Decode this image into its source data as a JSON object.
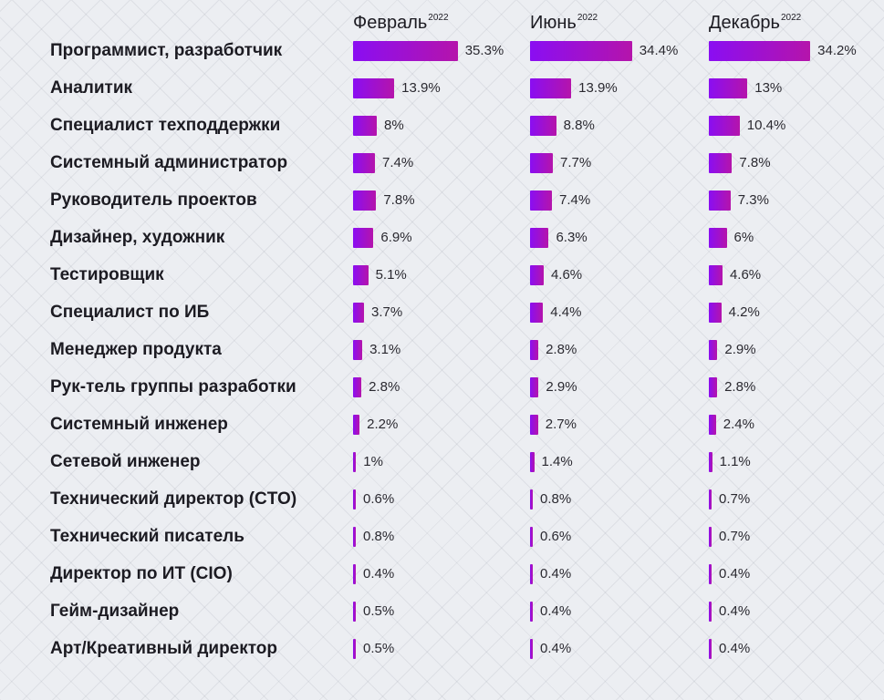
{
  "chart_data": {
    "type": "bar",
    "orientation": "horizontal",
    "columns": [
      {
        "name": "Февраль",
        "superscript": "2022"
      },
      {
        "name": "Июнь",
        "superscript": "2022"
      },
      {
        "name": "Декабрь",
        "superscript": "2022"
      }
    ],
    "categories": [
      "Программист, разработчик",
      "Аналитик",
      "Специалист техподдержки",
      "Системный администратор",
      "Руководитель проектов",
      "Дизайнер, художник",
      "Тестировщик",
      "Специалист по ИБ",
      "Менеджер продукта",
      "Рук-тель группы разработки",
      "Системный инженер",
      "Сетевой инженер",
      "Технический директор (CTO)",
      "Технический писатель",
      "Директор по ИТ (CIO)",
      "Гейм-дизайнер",
      "Арт/Креативный директор"
    ],
    "series": [
      {
        "name": "Февраль",
        "values": [
          35.3,
          13.9,
          8,
          7.4,
          7.8,
          6.9,
          5.1,
          3.7,
          3.1,
          2.8,
          2.2,
          1,
          0.6,
          0.8,
          0.4,
          0.5,
          0.5
        ],
        "labels": [
          "35.3%",
          "13.9%",
          "8%",
          "7.4%",
          "7.8%",
          "6.9%",
          "5.1%",
          "3.7%",
          "3.1%",
          "2.8%",
          "2.2%",
          "1%",
          "0.6%",
          "0.8%",
          "0.4%",
          "0.5%",
          "0.5%"
        ]
      },
      {
        "name": "Июнь",
        "values": [
          34.4,
          13.9,
          8.8,
          7.7,
          7.4,
          6.3,
          4.6,
          4.4,
          2.8,
          2.9,
          2.7,
          1.4,
          0.8,
          0.6,
          0.4,
          0.4,
          0.4
        ],
        "labels": [
          "34.4%",
          "13.9%",
          "8.8%",
          "7.7%",
          "7.4%",
          "6.3%",
          "4.6%",
          "4.4%",
          "2.8%",
          "2.9%",
          "2.7%",
          "1.4%",
          "0.8%",
          "0.6%",
          "0.4%",
          "0.4%",
          "0.4%"
        ]
      },
      {
        "name": "Декабрь",
        "values": [
          34.2,
          13,
          10.4,
          7.8,
          7.3,
          6,
          4.6,
          4.2,
          2.9,
          2.8,
          2.4,
          1.1,
          0.7,
          0.7,
          0.4,
          0.4,
          0.4
        ],
        "labels": [
          "34.2%",
          "13%",
          "10.4%",
          "7.8%",
          "7.3%",
          "6%",
          "4.6%",
          "4.2%",
          "2.9%",
          "2.8%",
          "2.4%",
          "1.1%",
          "0.7%",
          "0.7%",
          "0.4%",
          "0.4%",
          "0.4%"
        ]
      }
    ],
    "bar_gradient": [
      "#8a0ef2",
      "#b514ab"
    ],
    "title": "",
    "xlabel": "",
    "ylabel": "",
    "grid": false,
    "legend": "none"
  }
}
